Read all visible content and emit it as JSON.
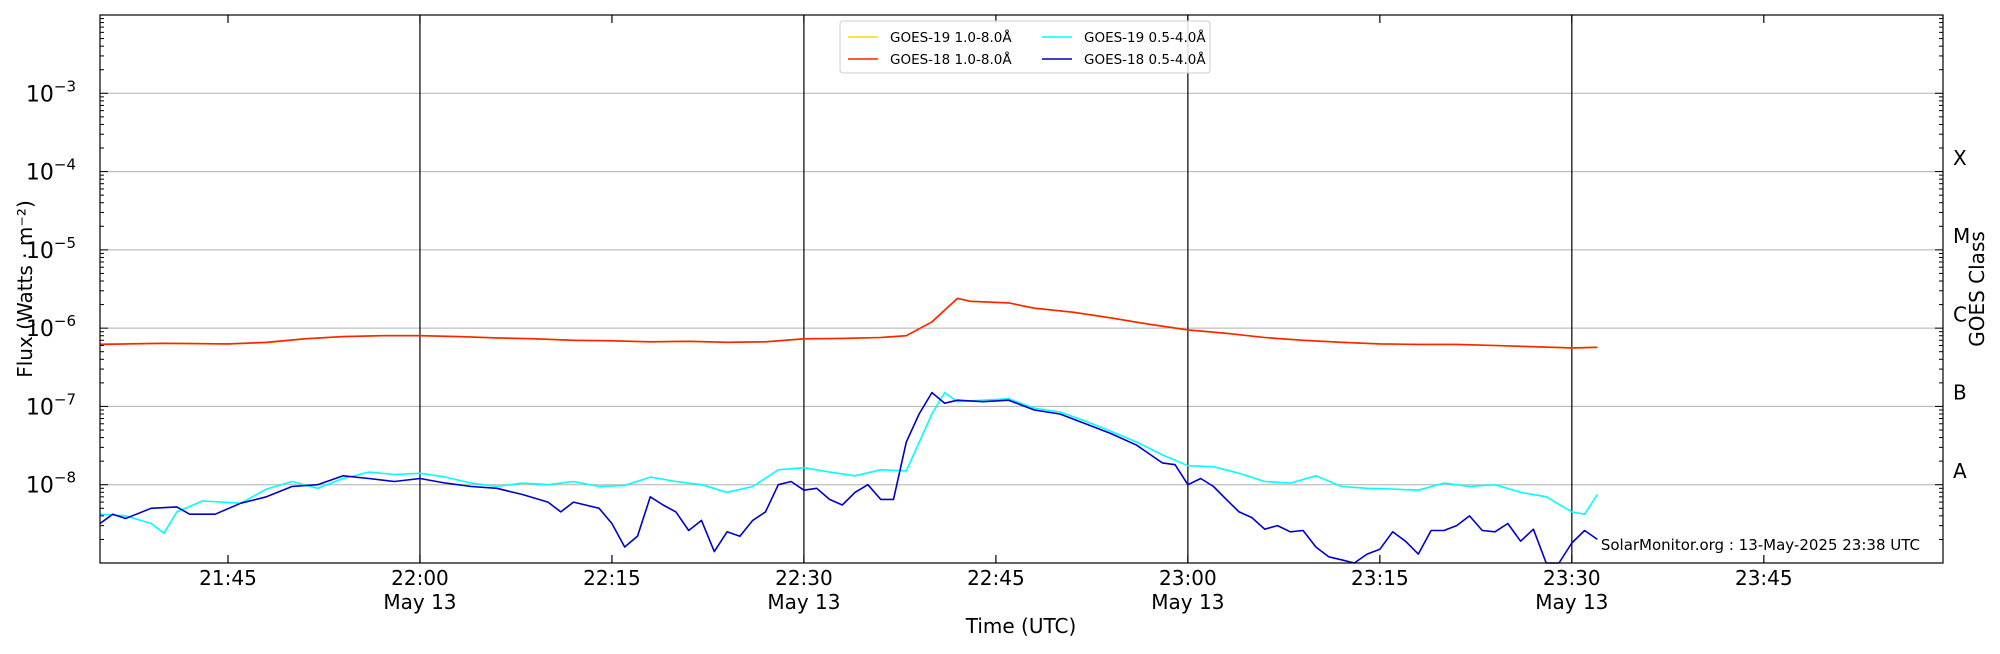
{
  "chart_data": {
    "type": "line",
    "title": "",
    "xlabel": "Time (UTC)",
    "ylabel": "Flux (Watts · m⁻²)",
    "y2label": "GOES Class",
    "yscale": "log",
    "xlim": [
      "21:35",
      "23:59"
    ],
    "ylim": [
      1e-09,
      0.01
    ],
    "grid": "horizontal",
    "legend_position": "top-center",
    "credit": "SolarMonitor.org : 13-May-2025 23:38 UTC",
    "x_ticks": [
      {
        "label": "21:45",
        "sub": ""
      },
      {
        "label": "22:00",
        "sub": "May 13"
      },
      {
        "label": "22:15",
        "sub": ""
      },
      {
        "label": "22:30",
        "sub": "May 13"
      },
      {
        "label": "22:45",
        "sub": ""
      },
      {
        "label": "23:00",
        "sub": "May 13"
      },
      {
        "label": "23:15",
        "sub": ""
      },
      {
        "label": "23:30",
        "sub": "May 13"
      },
      {
        "label": "23:45",
        "sub": ""
      }
    ],
    "x_tick_minutes": [
      1305,
      1320,
      1335,
      1350,
      1365,
      1380,
      1395,
      1410,
      1425
    ],
    "vlines_minutes": [
      1320,
      1350,
      1380,
      1410
    ],
    "y_ticks": [
      {
        "value": 1e-08,
        "base": "10",
        "exp": "−8"
      },
      {
        "value": 1e-07,
        "base": "10",
        "exp": "−7"
      },
      {
        "value": 1e-06,
        "base": "10",
        "exp": "−6"
      },
      {
        "value": 1e-05,
        "base": "10",
        "exp": "−5"
      },
      {
        "value": 0.0001,
        "base": "10",
        "exp": "−4"
      },
      {
        "value": 0.001,
        "base": "10",
        "exp": "−3"
      }
    ],
    "classes": [
      {
        "label": "A",
        "value": 1.5e-08
      },
      {
        "label": "B",
        "value": 1.5e-07
      },
      {
        "label": "C",
        "value": 1.5e-06
      },
      {
        "label": "M",
        "value": 1.5e-05
      },
      {
        "label": "X",
        "value": 0.00015
      }
    ],
    "legend": [
      {
        "label": "GOES-19 1.0-8.0Å",
        "color": "#ffd700"
      },
      {
        "label": "GOES-19 0.5-4.0Å",
        "color": "#00ffff"
      },
      {
        "label": "GOES-18 1.0-8.0Å",
        "color": "#ff2200"
      },
      {
        "label": "GOES-18 0.5-4.0Å",
        "color": "#0000cc"
      }
    ],
    "series": [
      {
        "name": "GOES-19 1.0-8.0Å",
        "color": "#ffd700",
        "points": [
          [
            1295,
            6.3e-07
          ],
          [
            1300,
            6.4e-07
          ],
          [
            1305,
            6.3e-07
          ],
          [
            1308,
            6.5e-07
          ],
          [
            1311,
            7.3e-07
          ],
          [
            1314,
            7.8e-07
          ],
          [
            1317,
            8e-07
          ],
          [
            1320,
            8e-07
          ],
          [
            1323,
            7.8e-07
          ],
          [
            1326,
            7.5e-07
          ],
          [
            1329,
            7.3e-07
          ],
          [
            1332,
            7e-07
          ],
          [
            1335,
            6.9e-07
          ],
          [
            1338,
            6.7e-07
          ],
          [
            1341,
            6.8e-07
          ],
          [
            1344,
            6.6e-07
          ],
          [
            1347,
            6.7e-07
          ],
          [
            1350,
            7.3e-07
          ],
          [
            1353,
            7.4e-07
          ],
          [
            1356,
            7.6e-07
          ],
          [
            1358,
            8e-07
          ],
          [
            1360,
            1.2e-06
          ],
          [
            1362,
            2.4e-06
          ],
          [
            1363,
            2.2e-06
          ],
          [
            1366,
            2.1e-06
          ],
          [
            1368,
            1.8e-06
          ],
          [
            1371,
            1.6e-06
          ],
          [
            1374,
            1.35e-06
          ],
          [
            1377,
            1.12e-06
          ],
          [
            1380,
            9.5e-07
          ],
          [
            1383,
            8.6e-07
          ],
          [
            1386,
            7.6e-07
          ],
          [
            1389,
            7e-07
          ],
          [
            1392,
            6.6e-07
          ],
          [
            1395,
            6.3e-07
          ],
          [
            1398,
            6.2e-07
          ],
          [
            1401,
            6.2e-07
          ],
          [
            1404,
            6e-07
          ],
          [
            1407,
            5.8e-07
          ],
          [
            1410,
            5.6e-07
          ],
          [
            1412,
            5.7e-07
          ]
        ]
      },
      {
        "name": "GOES-18 1.0-8.0Å",
        "color": "#ff2200",
        "points": [
          [
            1295,
            6.2e-07
          ],
          [
            1300,
            6.4e-07
          ],
          [
            1305,
            6.3e-07
          ],
          [
            1308,
            6.6e-07
          ],
          [
            1311,
            7.3e-07
          ],
          [
            1314,
            7.8e-07
          ],
          [
            1317,
            8e-07
          ],
          [
            1320,
            8e-07
          ],
          [
            1323,
            7.8e-07
          ],
          [
            1326,
            7.5e-07
          ],
          [
            1329,
            7.3e-07
          ],
          [
            1332,
            7e-07
          ],
          [
            1335,
            6.9e-07
          ],
          [
            1338,
            6.7e-07
          ],
          [
            1341,
            6.8e-07
          ],
          [
            1344,
            6.6e-07
          ],
          [
            1347,
            6.7e-07
          ],
          [
            1350,
            7.3e-07
          ],
          [
            1353,
            7.4e-07
          ],
          [
            1356,
            7.6e-07
          ],
          [
            1358,
            8e-07
          ],
          [
            1360,
            1.2e-06
          ],
          [
            1362,
            2.4e-06
          ],
          [
            1363,
            2.2e-06
          ],
          [
            1366,
            2.1e-06
          ],
          [
            1368,
            1.8e-06
          ],
          [
            1371,
            1.6e-06
          ],
          [
            1374,
            1.35e-06
          ],
          [
            1377,
            1.12e-06
          ],
          [
            1380,
            9.5e-07
          ],
          [
            1383,
            8.6e-07
          ],
          [
            1386,
            7.6e-07
          ],
          [
            1389,
            7e-07
          ],
          [
            1392,
            6.6e-07
          ],
          [
            1395,
            6.3e-07
          ],
          [
            1398,
            6.2e-07
          ],
          [
            1401,
            6.2e-07
          ],
          [
            1404,
            6e-07
          ],
          [
            1407,
            5.8e-07
          ],
          [
            1410,
            5.6e-07
          ],
          [
            1412,
            5.7e-07
          ]
        ]
      },
      {
        "name": "GOES-19 0.5-4.0Å",
        "color": "#00ffff",
        "points": [
          [
            1295,
            4.2e-09
          ],
          [
            1297,
            4e-09
          ],
          [
            1299,
            3.2e-09
          ],
          [
            1300,
            2.4e-09
          ],
          [
            1301,
            4.5e-09
          ],
          [
            1303,
            6.2e-09
          ],
          [
            1306,
            5.8e-09
          ],
          [
            1308,
            8.8e-09
          ],
          [
            1310,
            1.1e-08
          ],
          [
            1312,
            9e-09
          ],
          [
            1314,
            1.2e-08
          ],
          [
            1316,
            1.45e-08
          ],
          [
            1318,
            1.35e-08
          ],
          [
            1320,
            1.4e-08
          ],
          [
            1322,
            1.25e-08
          ],
          [
            1324,
            1.05e-08
          ],
          [
            1326,
            9.5e-09
          ],
          [
            1328,
            1.05e-08
          ],
          [
            1330,
            1e-08
          ],
          [
            1332,
            1.1e-08
          ],
          [
            1334,
            9.5e-09
          ],
          [
            1336,
            9.8e-09
          ],
          [
            1338,
            1.25e-08
          ],
          [
            1340,
            1.1e-08
          ],
          [
            1342,
            1e-08
          ],
          [
            1344,
            8e-09
          ],
          [
            1346,
            9.5e-09
          ],
          [
            1348,
            1.55e-08
          ],
          [
            1350,
            1.65e-08
          ],
          [
            1352,
            1.45e-08
          ],
          [
            1354,
            1.3e-08
          ],
          [
            1356,
            1.55e-08
          ],
          [
            1358,
            1.5e-08
          ],
          [
            1360,
            8e-08
          ],
          [
            1361,
            1.5e-07
          ],
          [
            1362,
            1.15e-07
          ],
          [
            1364,
            1.2e-07
          ],
          [
            1366,
            1.25e-07
          ],
          [
            1368,
            9.5e-08
          ],
          [
            1370,
            8.5e-08
          ],
          [
            1372,
            6.5e-08
          ],
          [
            1374,
            4.8e-08
          ],
          [
            1376,
            3.5e-08
          ],
          [
            1378,
            2.4e-08
          ],
          [
            1380,
            1.75e-08
          ],
          [
            1382,
            1.7e-08
          ],
          [
            1384,
            1.4e-08
          ],
          [
            1386,
            1.1e-08
          ],
          [
            1388,
            1.05e-08
          ],
          [
            1390,
            1.3e-08
          ],
          [
            1392,
            9.5e-09
          ],
          [
            1394,
            9e-09
          ],
          [
            1396,
            8.8e-09
          ],
          [
            1398,
            8.5e-09
          ],
          [
            1400,
            1.05e-08
          ],
          [
            1402,
            9.5e-09
          ],
          [
            1404,
            1e-08
          ],
          [
            1406,
            8e-09
          ],
          [
            1408,
            7e-09
          ],
          [
            1410,
            4.5e-09
          ],
          [
            1411,
            4.2e-09
          ],
          [
            1412,
            7.5e-09
          ]
        ]
      },
      {
        "name": "GOES-18 0.5-4.0Å",
        "color": "#0000cc",
        "points": [
          [
            1295,
            3.2e-09
          ],
          [
            1296,
            4.2e-09
          ],
          [
            1297,
            3.7e-09
          ],
          [
            1299,
            5e-09
          ],
          [
            1301,
            5.2e-09
          ],
          [
            1302,
            4.2e-09
          ],
          [
            1304,
            4.2e-09
          ],
          [
            1306,
            5.8e-09
          ],
          [
            1308,
            7e-09
          ],
          [
            1310,
            9.5e-09
          ],
          [
            1312,
            1e-08
          ],
          [
            1314,
            1.3e-08
          ],
          [
            1316,
            1.2e-08
          ],
          [
            1318,
            1.1e-08
          ],
          [
            1320,
            1.2e-08
          ],
          [
            1322,
            1.05e-08
          ],
          [
            1324,
            9.5e-09
          ],
          [
            1326,
            9e-09
          ],
          [
            1328,
            7.5e-09
          ],
          [
            1330,
            6e-09
          ],
          [
            1331,
            4.5e-09
          ],
          [
            1332,
            6e-09
          ],
          [
            1334,
            5e-09
          ],
          [
            1335,
            3.2e-09
          ],
          [
            1336,
            1.6e-09
          ],
          [
            1337,
            2.2e-09
          ],
          [
            1338,
            7e-09
          ],
          [
            1339,
            5.5e-09
          ],
          [
            1340,
            4.5e-09
          ],
          [
            1341,
            2.6e-09
          ],
          [
            1342,
            3.5e-09
          ],
          [
            1343,
            1.4e-09
          ],
          [
            1344,
            2.5e-09
          ],
          [
            1345,
            2.2e-09
          ],
          [
            1346,
            3.5e-09
          ],
          [
            1347,
            4.5e-09
          ],
          [
            1348,
            1e-08
          ],
          [
            1349,
            1.1e-08
          ],
          [
            1350,
            8.5e-09
          ],
          [
            1351,
            9e-09
          ],
          [
            1352,
            6.5e-09
          ],
          [
            1353,
            5.5e-09
          ],
          [
            1354,
            8e-09
          ],
          [
            1355,
            1e-08
          ],
          [
            1356,
            6.5e-09
          ],
          [
            1357,
            6.5e-09
          ],
          [
            1358,
            3.5e-08
          ],
          [
            1359,
            8e-08
          ],
          [
            1360,
            1.5e-07
          ],
          [
            1361,
            1.1e-07
          ],
          [
            1362,
            1.2e-07
          ],
          [
            1364,
            1.15e-07
          ],
          [
            1366,
            1.2e-07
          ],
          [
            1368,
            9e-08
          ],
          [
            1370,
            8e-08
          ],
          [
            1372,
            6e-08
          ],
          [
            1374,
            4.5e-08
          ],
          [
            1376,
            3.2e-08
          ],
          [
            1378,
            1.9e-08
          ],
          [
            1379,
            1.8e-08
          ],
          [
            1380,
            1e-08
          ],
          [
            1381,
            1.2e-08
          ],
          [
            1382,
            9.5e-09
          ],
          [
            1383,
            6.5e-09
          ],
          [
            1384,
            4.5e-09
          ],
          [
            1385,
            3.8e-09
          ],
          [
            1386,
            2.7e-09
          ],
          [
            1387,
            3e-09
          ],
          [
            1388,
            2.5e-09
          ],
          [
            1389,
            2.6e-09
          ],
          [
            1390,
            1.6e-09
          ],
          [
            1391,
            1.2e-09
          ],
          [
            1392,
            1.1e-09
          ],
          [
            1393,
            9e-10
          ],
          [
            1394,
            1.3e-09
          ],
          [
            1395,
            1.5e-09
          ],
          [
            1396,
            2.5e-09
          ],
          [
            1397,
            1.9e-09
          ],
          [
            1398,
            1.3e-09
          ],
          [
            1399,
            2.6e-09
          ],
          [
            1400,
            2.6e-09
          ],
          [
            1401,
            3e-09
          ],
          [
            1402,
            4e-09
          ],
          [
            1403,
            2.6e-09
          ],
          [
            1404,
            2.5e-09
          ],
          [
            1405,
            3.2e-09
          ],
          [
            1406,
            1.9e-09
          ],
          [
            1407,
            2.7e-09
          ],
          [
            1408,
            8e-10
          ],
          [
            1409,
            1e-09
          ],
          [
            1410,
            1.8e-09
          ],
          [
            1411,
            2.6e-09
          ],
          [
            1412,
            2e-09
          ]
        ]
      }
    ]
  }
}
